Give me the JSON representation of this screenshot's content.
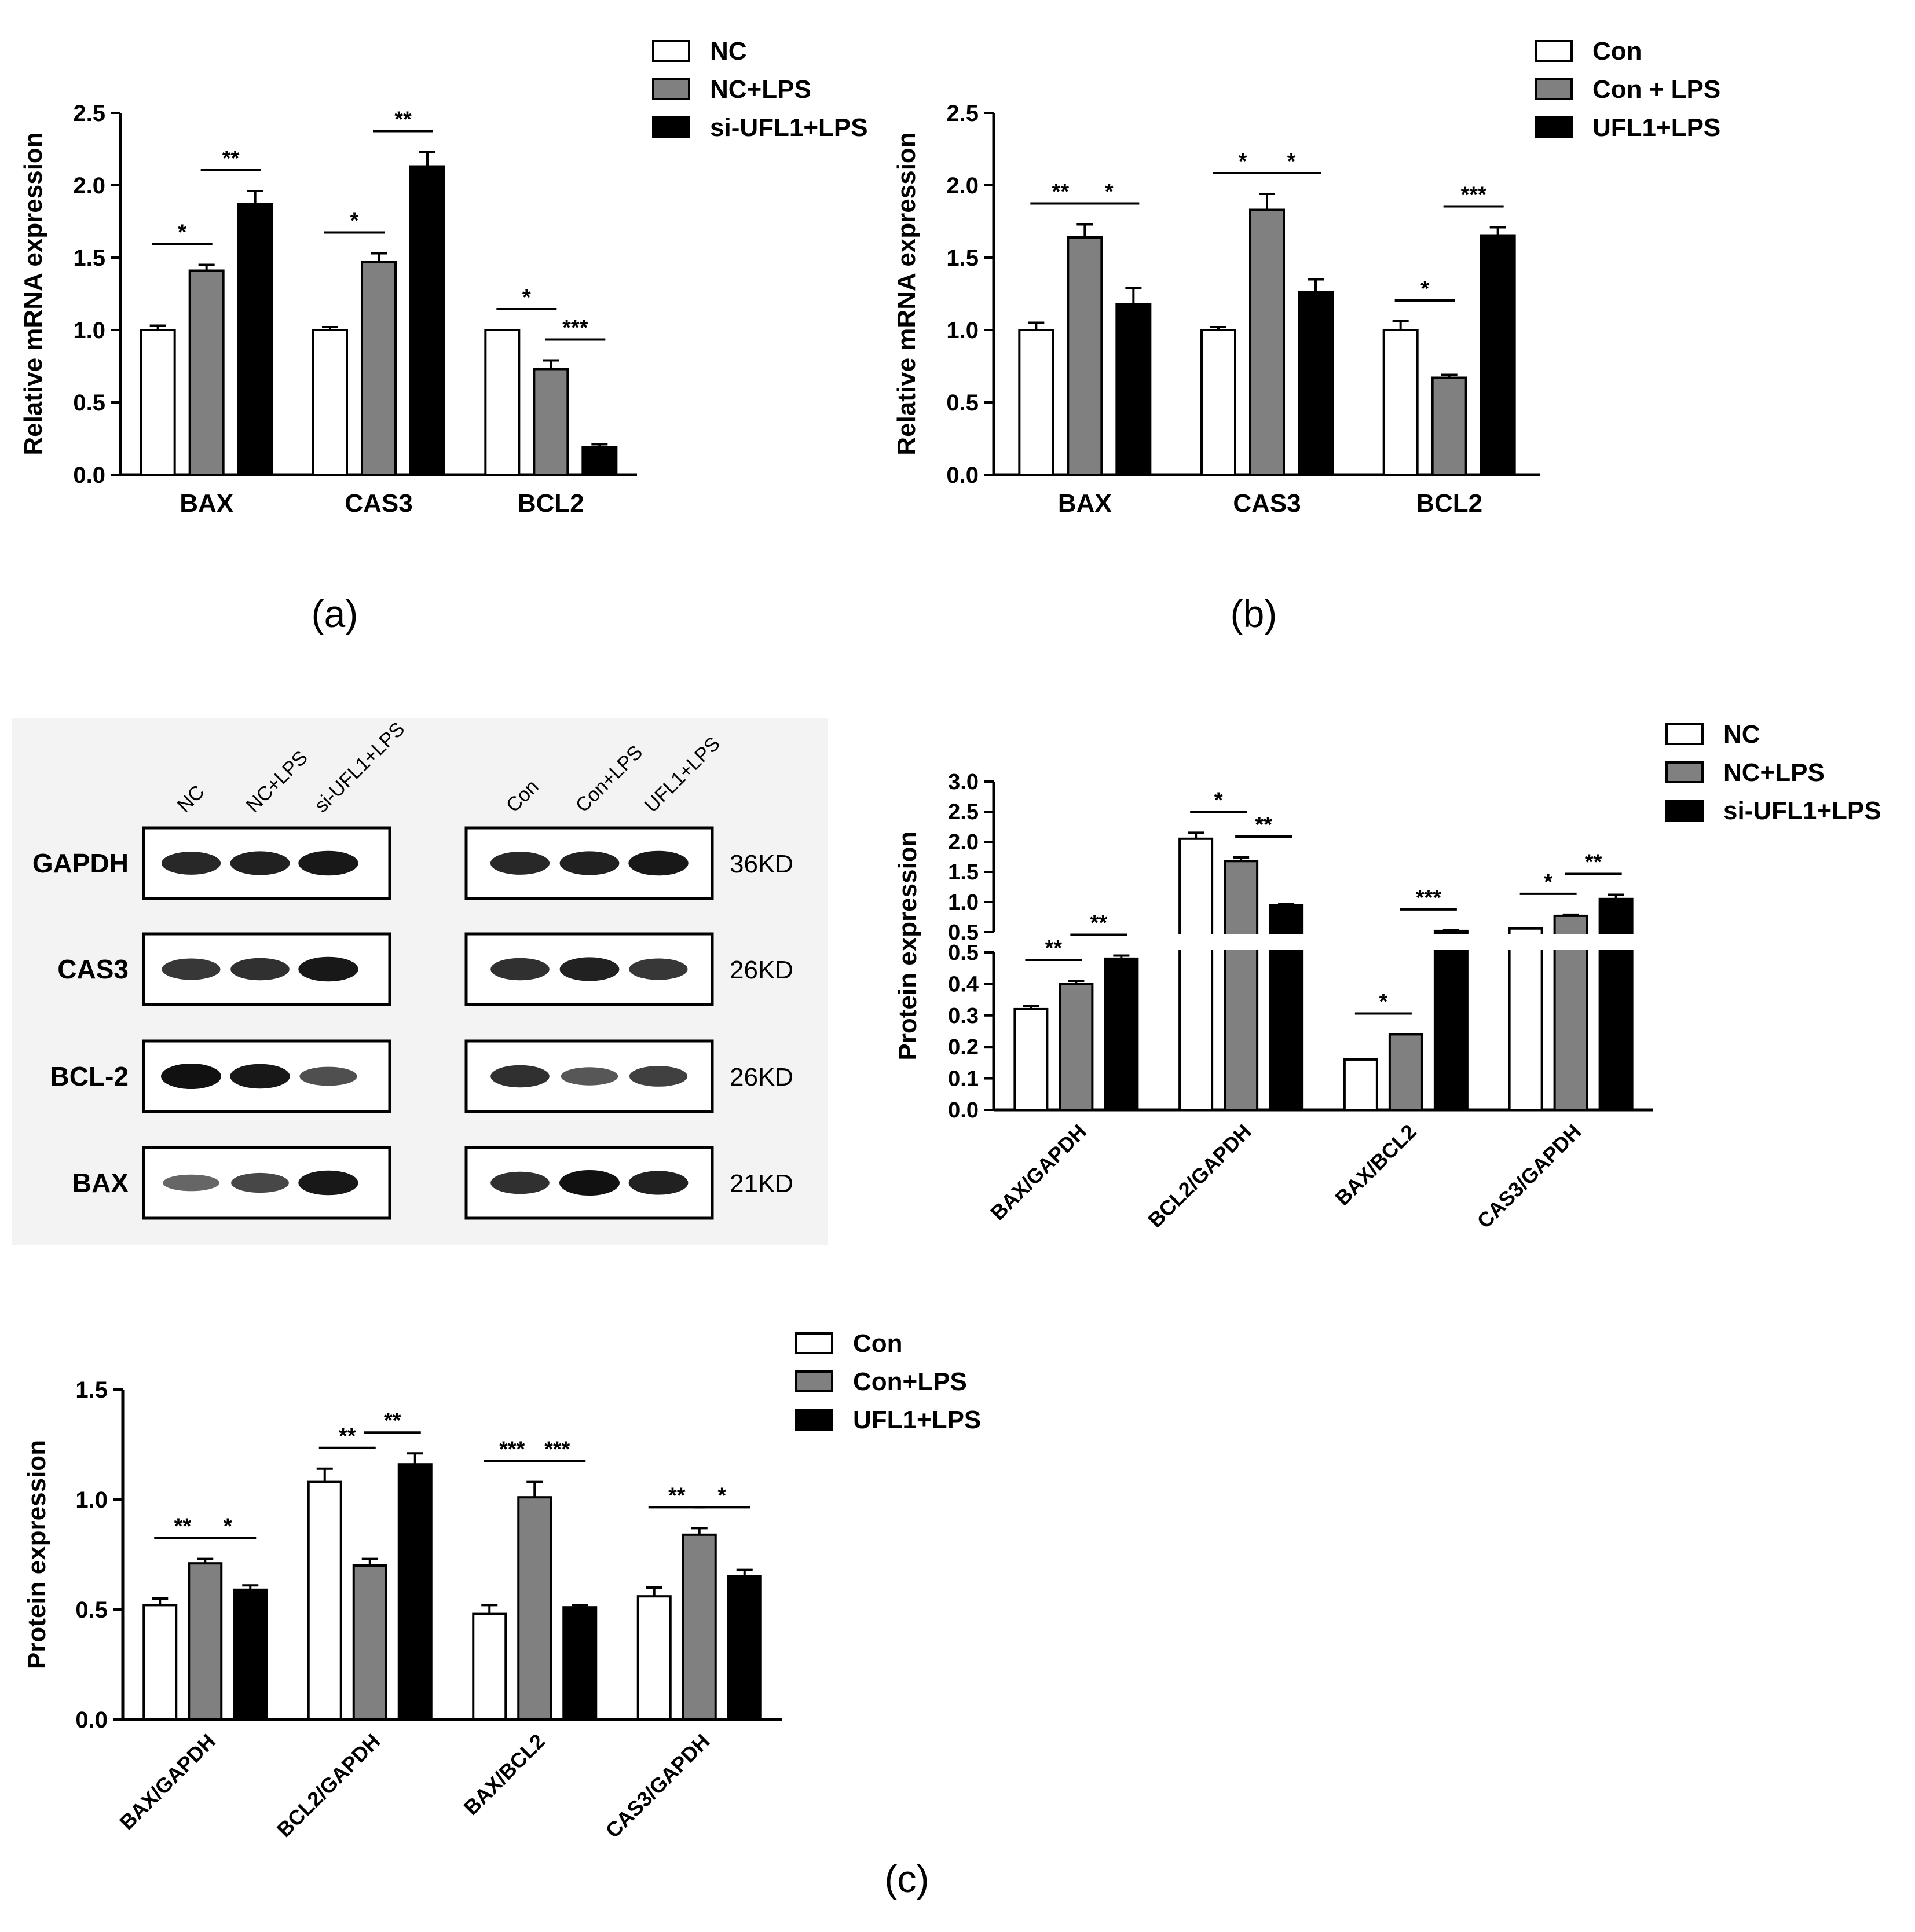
{
  "figure_labels": [
    "(a)",
    "(b)",
    "(c)"
  ],
  "colors": {
    "white_bar": "#ffffff",
    "gray_bar": "#808080",
    "black_bar": "#000000",
    "axis": "#000000",
    "blot_bg": "#f3f3f3"
  },
  "chart_data": [
    {
      "id": "a",
      "type": "bar",
      "title": "",
      "xlabel": "",
      "ylabel": "Relative mRNA expression",
      "categories": [
        "BAX",
        "CAS3",
        "BCL2"
      ],
      "ylim": [
        0,
        2.5
      ],
      "yticks": [
        "0.0",
        "0.5",
        "1.0",
        "1.5",
        "2.0",
        "2.5"
      ],
      "legend": "top-right",
      "series": [
        {
          "name": "NC",
          "values": [
            1.0,
            1.0,
            1.0
          ],
          "errors": [
            0.03,
            0.02,
            0.0
          ]
        },
        {
          "name": "NC+LPS",
          "values": [
            1.41,
            1.47,
            0.73
          ],
          "errors": [
            0.04,
            0.06,
            0.06
          ]
        },
        {
          "name": "si-UFL1+LPS",
          "values": [
            1.87,
            2.13,
            0.19
          ],
          "errors": [
            0.09,
            0.1,
            0.02
          ]
        }
      ],
      "significance": [
        {
          "category": 0,
          "pair": [
            0,
            1
          ],
          "label": "*"
        },
        {
          "category": 0,
          "pair": [
            1,
            2
          ],
          "label": "**"
        },
        {
          "category": 1,
          "pair": [
            0,
            1
          ],
          "label": "*"
        },
        {
          "category": 1,
          "pair": [
            1,
            2
          ],
          "label": "**"
        },
        {
          "category": 2,
          "pair": [
            0,
            1
          ],
          "label": "*"
        },
        {
          "category": 2,
          "pair": [
            1,
            2
          ],
          "label": "***"
        }
      ]
    },
    {
      "id": "b",
      "type": "bar",
      "title": "",
      "xlabel": "",
      "ylabel": "Relative mRNA expression",
      "categories": [
        "BAX",
        "CAS3",
        "BCL2"
      ],
      "ylim": [
        0,
        2.5
      ],
      "yticks": [
        "0.0",
        "0.5",
        "1.0",
        "1.5",
        "2.0",
        "2.5"
      ],
      "legend": "top-right",
      "series": [
        {
          "name": "Con",
          "values": [
            1.0,
            1.0,
            1.0
          ],
          "errors": [
            0.05,
            0.02,
            0.06
          ]
        },
        {
          "name": "Con + LPS",
          "values": [
            1.64,
            1.83,
            0.67
          ],
          "errors": [
            0.09,
            0.11,
            0.02
          ]
        },
        {
          "name": "UFL1+LPS",
          "values": [
            1.18,
            1.26,
            1.65
          ],
          "errors": [
            0.11,
            0.09,
            0.06
          ]
        }
      ],
      "significance": [
        {
          "category": 0,
          "pair": [
            0,
            1
          ],
          "label": "**"
        },
        {
          "category": 0,
          "pair": [
            1,
            2
          ],
          "label": "*"
        },
        {
          "category": 1,
          "pair": [
            0,
            1
          ],
          "label": "*"
        },
        {
          "category": 1,
          "pair": [
            1,
            2
          ],
          "label": "*"
        },
        {
          "category": 2,
          "pair": [
            0,
            1
          ],
          "label": "*"
        },
        {
          "category": 2,
          "pair": [
            1,
            2
          ],
          "label": "***"
        }
      ]
    },
    {
      "id": "c-blot",
      "type": "table",
      "left_lanes": [
        "NC",
        "NC+LPS",
        "si-UFL1+LPS"
      ],
      "right_lanes": [
        "Con",
        "Con+LPS",
        "UFL1+LPS"
      ],
      "rows": [
        {
          "protein": "GAPDH",
          "size": "36KD",
          "left_intensity": [
            0.85,
            0.9,
            0.95
          ],
          "right_intensity": [
            0.85,
            0.9,
            0.95
          ]
        },
        {
          "protein": "CAS3",
          "size": "26KD",
          "left_intensity": [
            0.75,
            0.8,
            0.95
          ],
          "right_intensity": [
            0.8,
            0.9,
            0.75
          ]
        },
        {
          "protein": "BCL-2",
          "size": "26KD",
          "left_intensity": [
            1.0,
            0.95,
            0.6
          ],
          "right_intensity": [
            0.8,
            0.55,
            0.7
          ]
        },
        {
          "protein": "BAX",
          "size": "21KD",
          "left_intensity": [
            0.45,
            0.65,
            0.95
          ],
          "right_intensity": [
            0.8,
            1.0,
            0.9
          ]
        }
      ]
    },
    {
      "id": "c-right",
      "type": "bar",
      "title": "",
      "xlabel": "",
      "ylabel": "Protein expression",
      "categories": [
        "BAX/GAPDH",
        "BCL2/GAPDH",
        "BAX/BCL2",
        "CAS3/GAPDH"
      ],
      "ylim": [
        0,
        3.0
      ],
      "axis_break": 0.5,
      "yticks_lower": [
        "0.0",
        "0.1",
        "0.2",
        "0.3",
        "0.4",
        "0.5"
      ],
      "yticks_upper": [
        "0.5",
        "1.0",
        "1.5",
        "2.0",
        "2.5",
        "3.0"
      ],
      "legend": "top-right",
      "series": [
        {
          "name": "NC",
          "values": [
            0.32,
            2.05,
            0.16,
            0.56
          ],
          "errors": [
            0.01,
            0.1,
            0.0,
            0.0
          ]
        },
        {
          "name": "NC+LPS",
          "values": [
            0.4,
            1.68,
            0.24,
            0.77
          ],
          "errors": [
            0.01,
            0.06,
            0.0,
            0.02
          ]
        },
        {
          "name": "si-UFL1+LPS",
          "values": [
            0.48,
            0.95,
            0.52,
            1.05
          ],
          "errors": [
            0.01,
            0.02,
            0.01,
            0.07
          ]
        }
      ],
      "significance": [
        {
          "category": 0,
          "pair": [
            0,
            1
          ],
          "label": "**"
        },
        {
          "category": 0,
          "pair": [
            1,
            2
          ],
          "label": "**"
        },
        {
          "category": 1,
          "pair": [
            0,
            1
          ],
          "label": "*"
        },
        {
          "category": 1,
          "pair": [
            1,
            2
          ],
          "label": "**"
        },
        {
          "category": 2,
          "pair": [
            0,
            1
          ],
          "label": "*"
        },
        {
          "category": 2,
          "pair": [
            1,
            2
          ],
          "label": "***"
        },
        {
          "category": 3,
          "pair": [
            0,
            1
          ],
          "label": "*"
        },
        {
          "category": 3,
          "pair": [
            1,
            2
          ],
          "label": "**"
        }
      ]
    },
    {
      "id": "c-bottom",
      "type": "bar",
      "title": "",
      "xlabel": "",
      "ylabel": "Protein expression",
      "categories": [
        "BAX/GAPDH",
        "BCL2/GAPDH",
        "BAX/BCL2",
        "CAS3/GAPDH"
      ],
      "ylim": [
        0,
        1.5
      ],
      "yticks": [
        "0.0",
        "0.5",
        "1.0",
        "1.5"
      ],
      "legend": "top-right",
      "series": [
        {
          "name": "Con",
          "values": [
            0.52,
            1.08,
            0.48,
            0.56
          ],
          "errors": [
            0.03,
            0.06,
            0.04,
            0.04
          ]
        },
        {
          "name": "Con+LPS",
          "values": [
            0.71,
            0.7,
            1.01,
            0.84
          ],
          "errors": [
            0.02,
            0.03,
            0.07,
            0.03
          ]
        },
        {
          "name": "UFL1+LPS",
          "values": [
            0.59,
            1.16,
            0.51,
            0.65
          ],
          "errors": [
            0.02,
            0.05,
            0.01,
            0.03
          ]
        }
      ],
      "significance": [
        {
          "category": 0,
          "pair": [
            0,
            1
          ],
          "label": "**"
        },
        {
          "category": 0,
          "pair": [
            1,
            2
          ],
          "label": "*"
        },
        {
          "category": 1,
          "pair": [
            0,
            1
          ],
          "label": "**"
        },
        {
          "category": 1,
          "pair": [
            1,
            2
          ],
          "label": "**"
        },
        {
          "category": 2,
          "pair": [
            0,
            1
          ],
          "label": "***"
        },
        {
          "category": 2,
          "pair": [
            1,
            2
          ],
          "label": "***"
        },
        {
          "category": 3,
          "pair": [
            0,
            1
          ],
          "label": "**"
        },
        {
          "category": 3,
          "pair": [
            1,
            2
          ],
          "label": "*"
        }
      ]
    }
  ]
}
